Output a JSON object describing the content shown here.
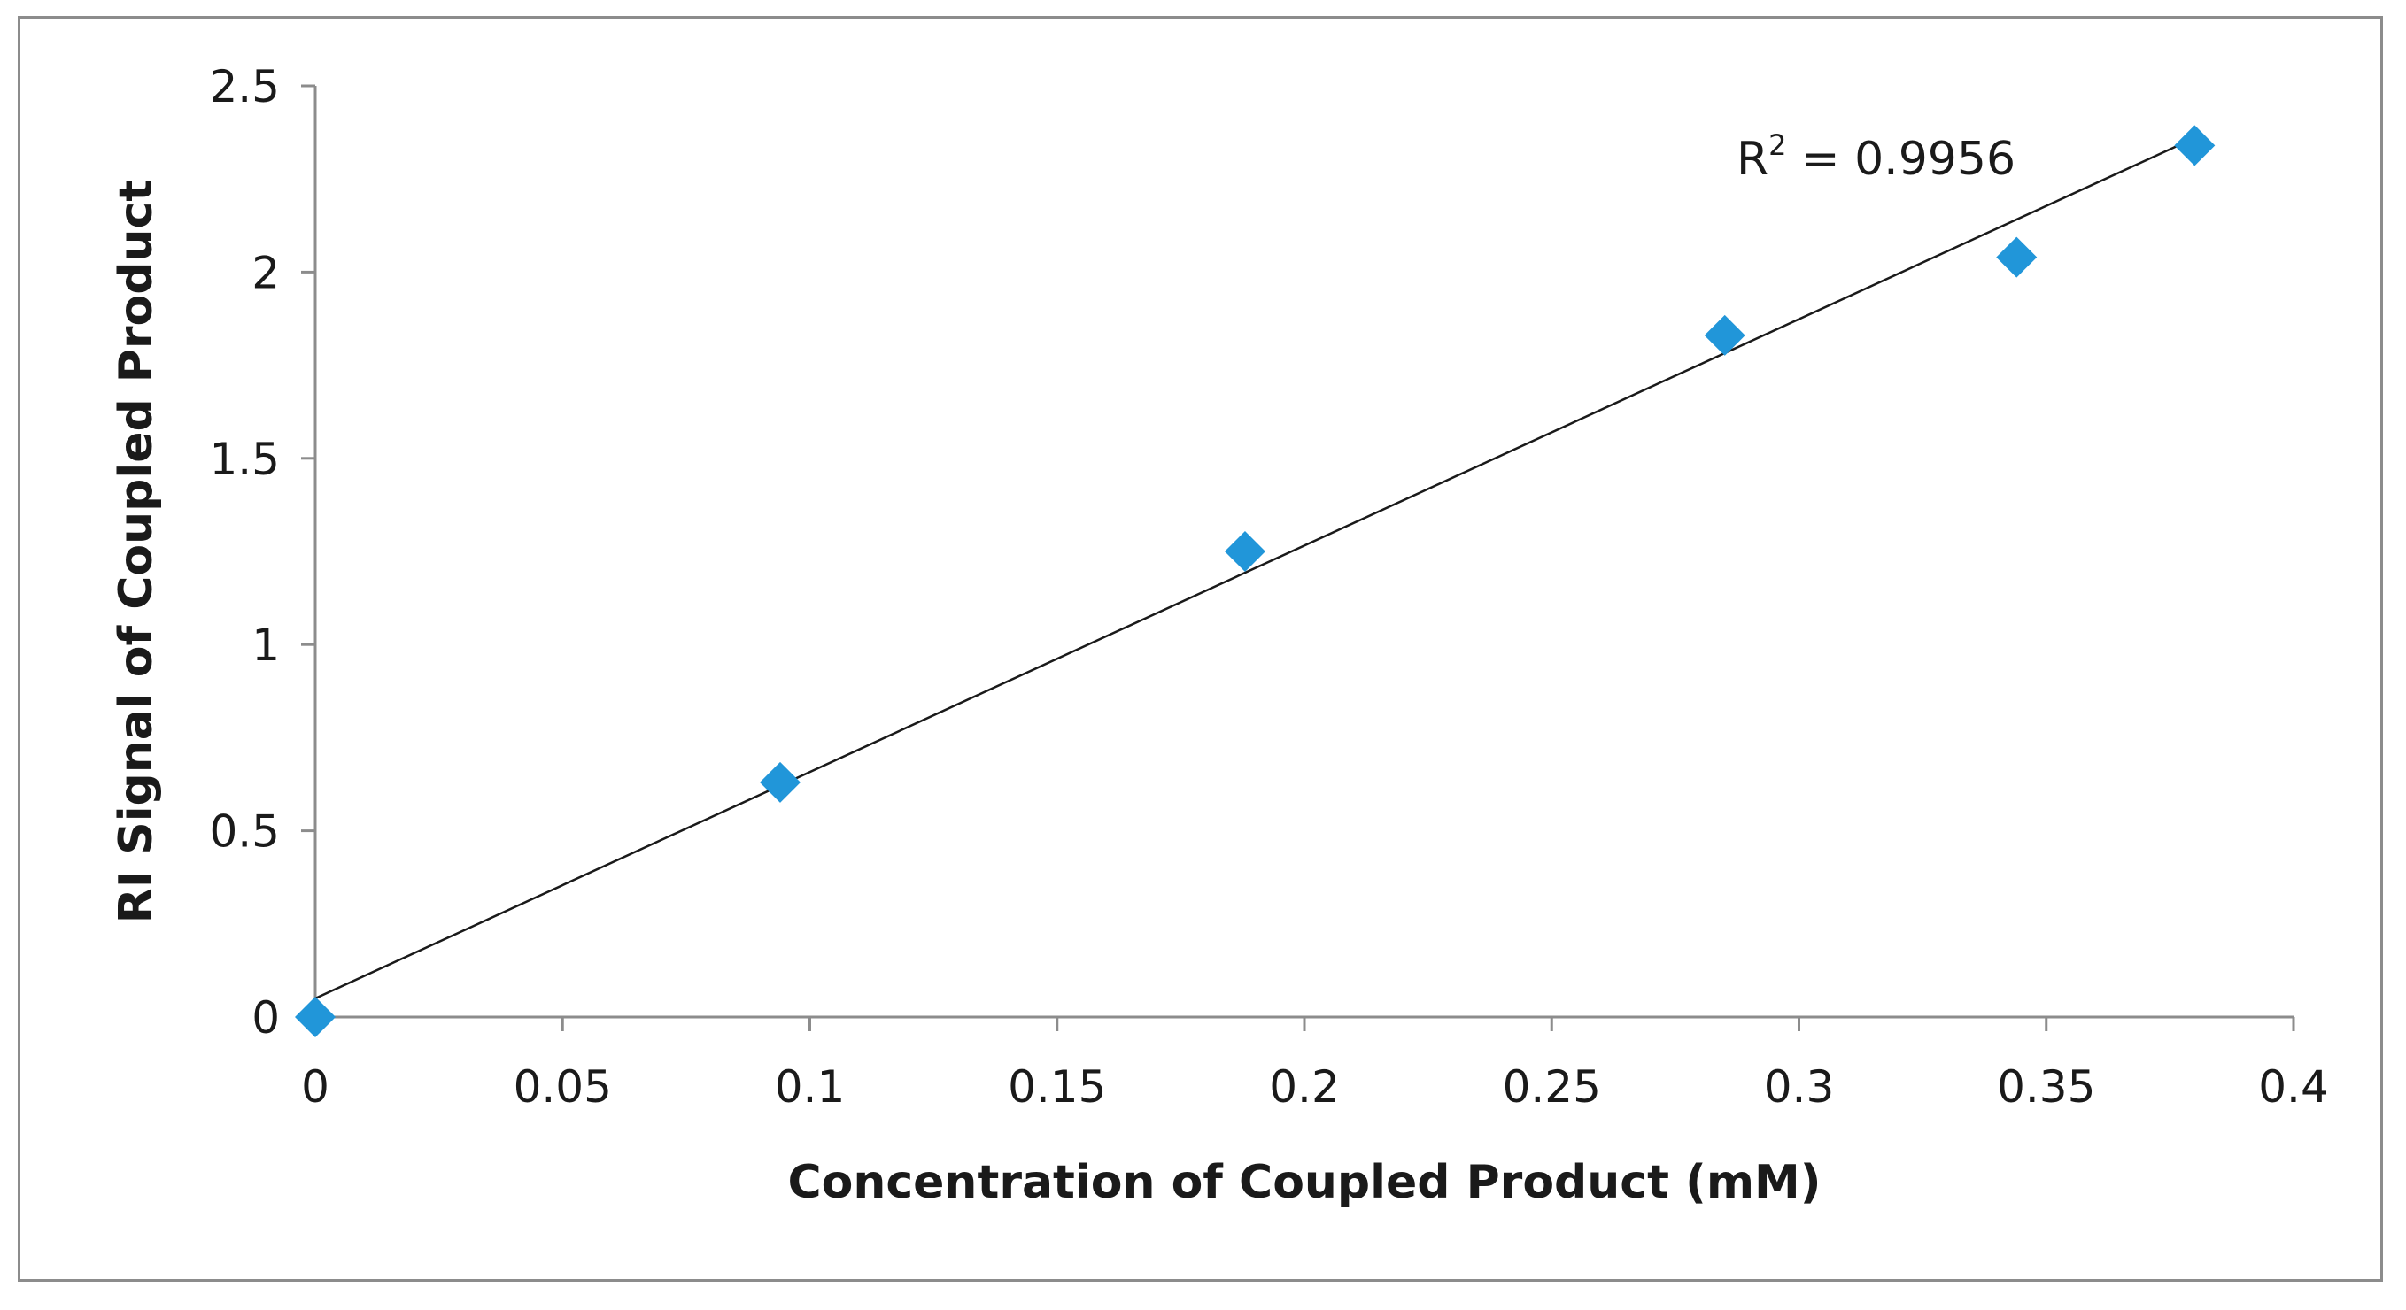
{
  "chart_data": {
    "type": "scatter",
    "title": "",
    "xlabel": "Concentration of Coupled Product (mM)",
    "ylabel": "RI Signal of Coupled Product",
    "xlim": [
      0,
      0.4
    ],
    "ylim": [
      0,
      2.5
    ],
    "x_ticks": [
      0,
      0.05,
      0.1,
      0.15,
      0.2,
      0.25,
      0.3,
      0.35,
      0.4
    ],
    "x_tick_labels": [
      "0",
      "0.05",
      "0.1",
      "0.15",
      "0.2",
      "0.25",
      "0.3",
      "0.35",
      "0.4"
    ],
    "y_ticks": [
      0,
      0.5,
      1,
      1.5,
      2,
      2.5
    ],
    "y_tick_labels": [
      "0",
      "0.5",
      "1",
      "1.5",
      "2",
      "2.5"
    ],
    "grid": false,
    "legend": "none",
    "series": [
      {
        "name": "RI Signal",
        "marker": "diamond",
        "color": "#2196d9",
        "x": [
          0,
          0.094,
          0.188,
          0.285,
          0.344,
          0.38
        ],
        "y": [
          0.0,
          0.63,
          1.25,
          1.83,
          2.04,
          2.34
        ]
      }
    ],
    "trendline": {
      "type": "linear",
      "color": "#1a1a1a",
      "x_start": 0,
      "y_start": 0.05,
      "x_end": 0.38,
      "y_end": 2.36
    },
    "annotations": [
      {
        "prefix": "R",
        "superscript": "2",
        "suffix": " = 0.9956",
        "anchor_x": 0.282,
        "anchor_y": 2.3
      }
    ]
  }
}
